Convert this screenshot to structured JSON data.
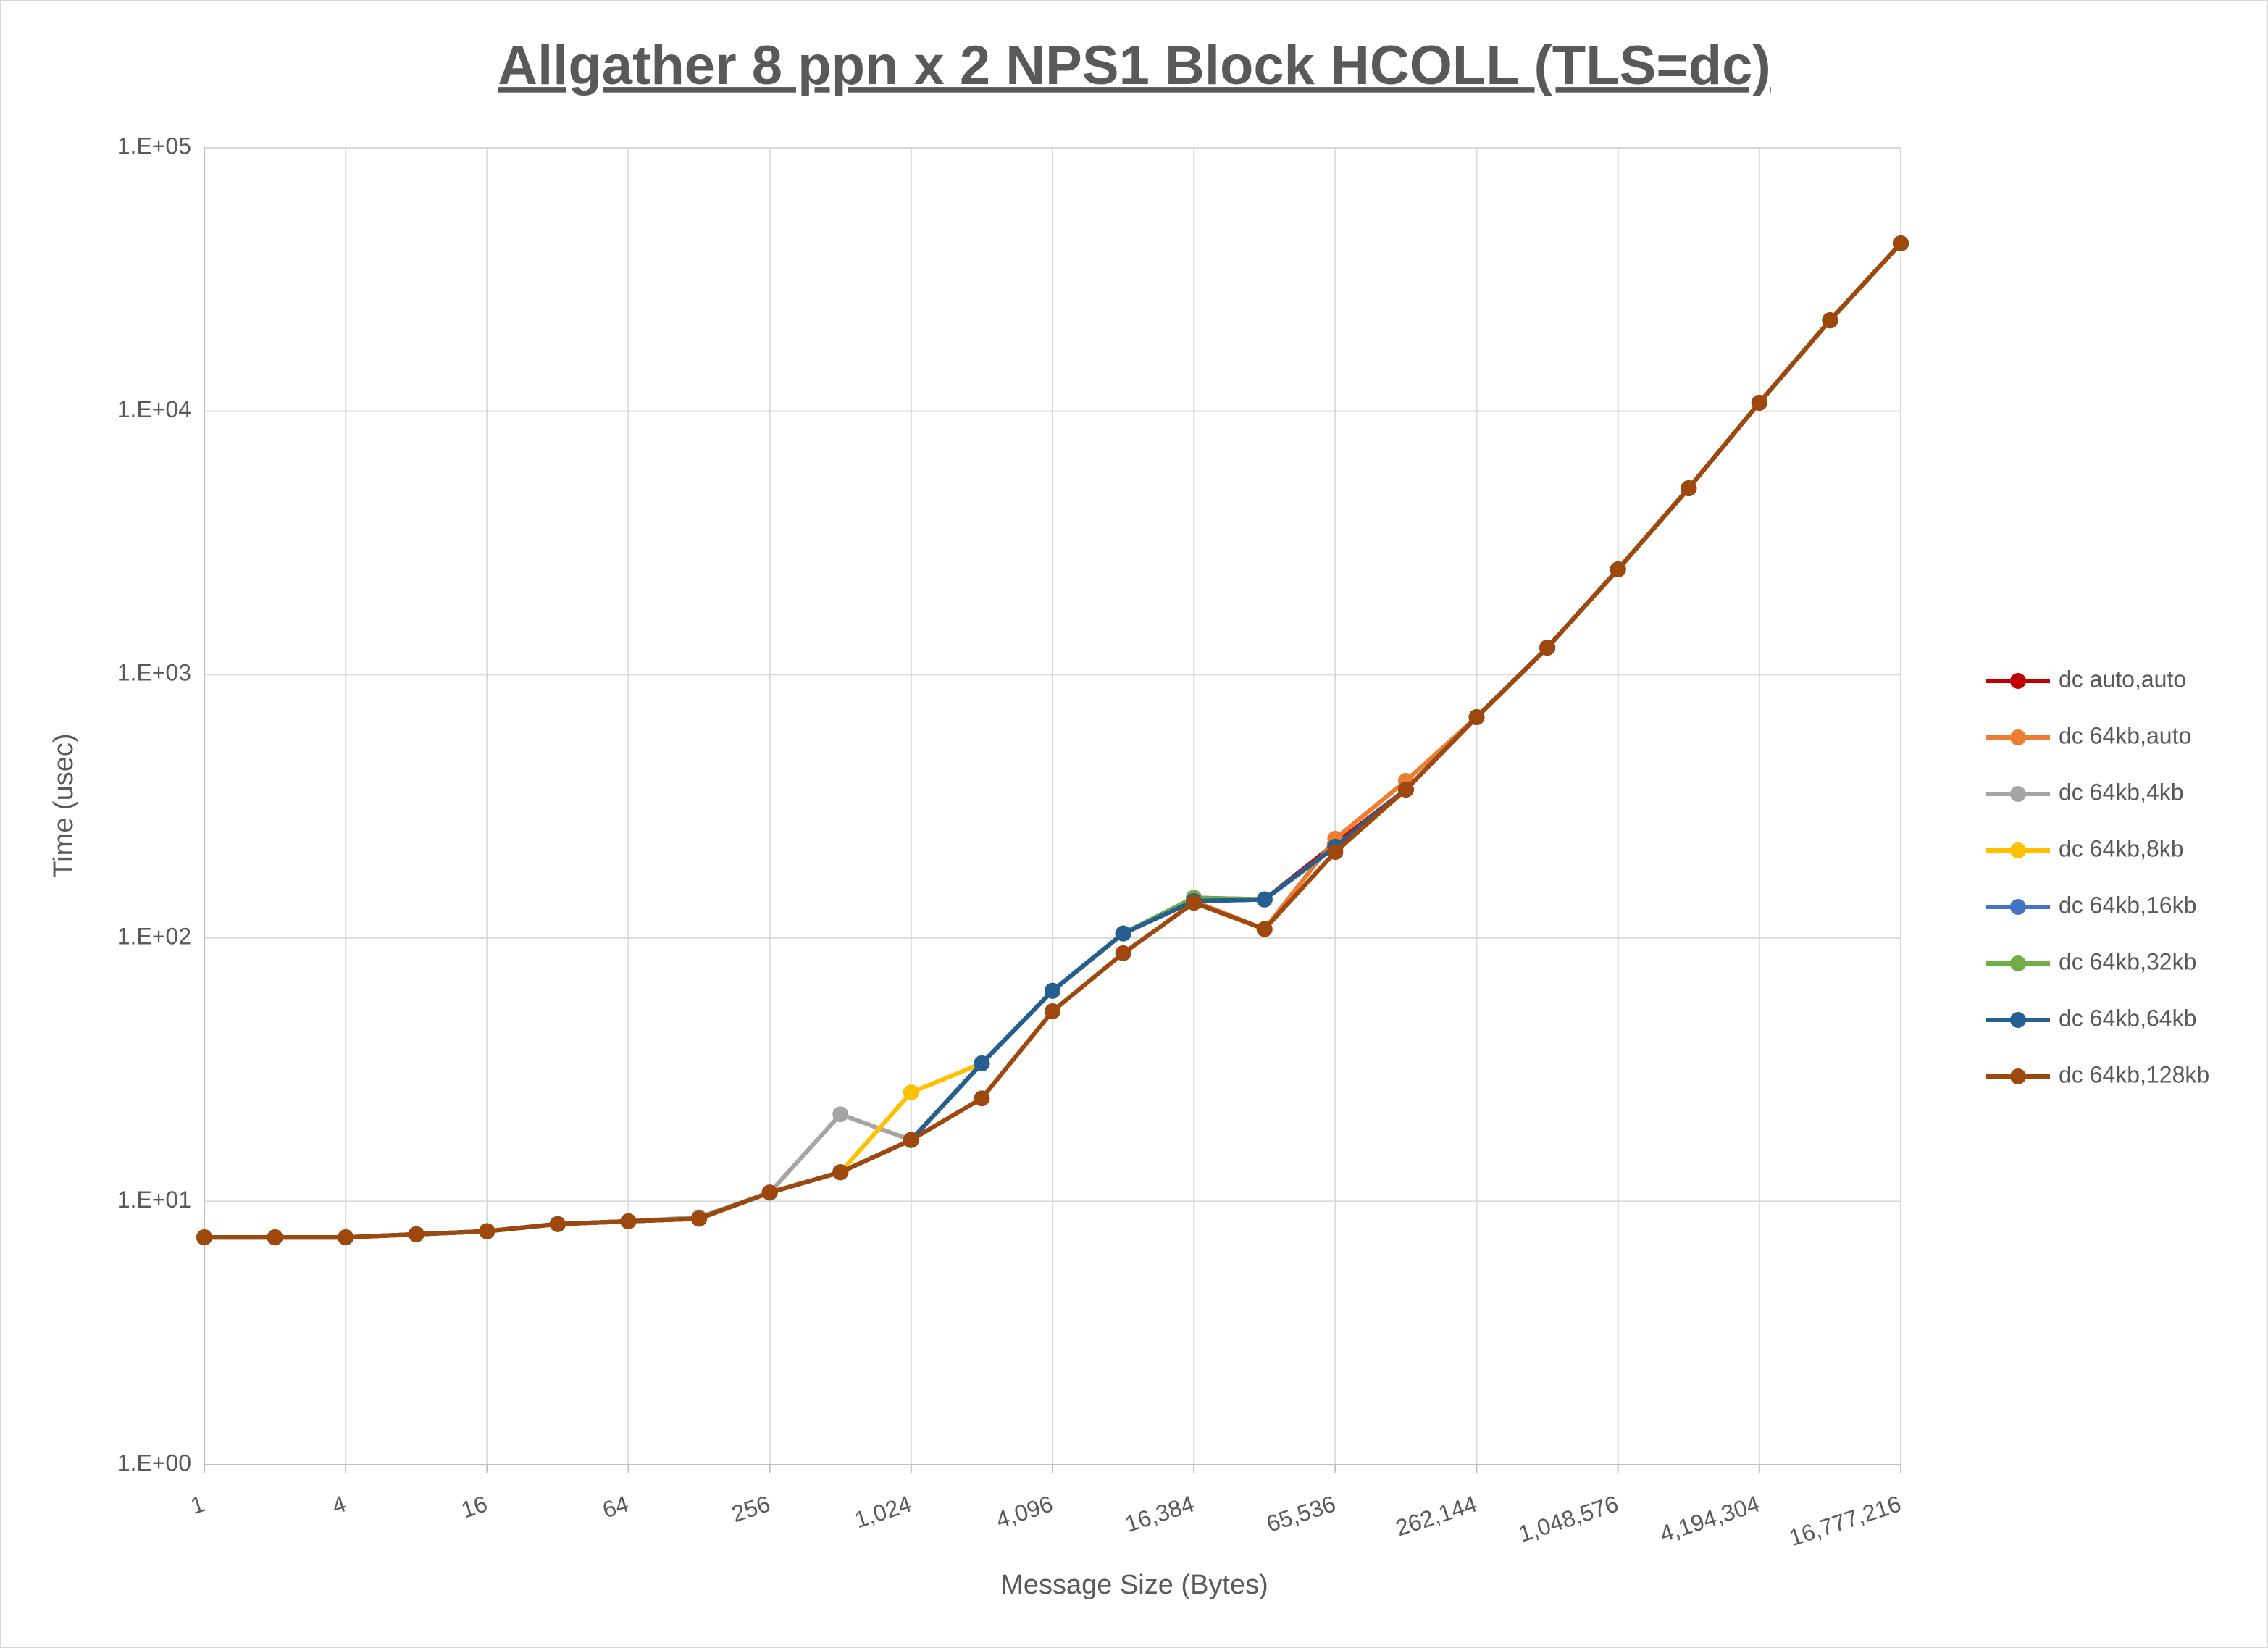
{
  "chart_data": {
    "type": "line",
    "title": "Allgather 8 ppn x 2 NPS1 Block HCOLL (TLS=dc)",
    "x_label": "Message Size (Bytes)",
    "y_label": "Time (usec)",
    "x_log": true,
    "y_log": true,
    "grid": true,
    "legend_position": "right",
    "x": [
      1,
      2,
      4,
      8,
      16,
      32,
      64,
      128,
      256,
      512,
      1024,
      2048,
      4096,
      8192,
      16384,
      32768,
      65536,
      131072,
      262144,
      524288,
      1048576,
      2097152,
      4194304,
      8388608,
      16777216
    ],
    "xlim": [
      1,
      16777216
    ],
    "xticks": [
      {
        "value": 1,
        "label": "1"
      },
      {
        "value": 4,
        "label": "4"
      },
      {
        "value": 16,
        "label": "16"
      },
      {
        "value": 64,
        "label": "64"
      },
      {
        "value": 256,
        "label": "256"
      },
      {
        "value": 1024,
        "label": "1,024"
      },
      {
        "value": 4096,
        "label": "4,096"
      },
      {
        "value": 16384,
        "label": "16,384"
      },
      {
        "value": 65536,
        "label": "65,536"
      },
      {
        "value": 262144,
        "label": "262,144"
      },
      {
        "value": 1048576,
        "label": "1,048,576"
      },
      {
        "value": 4194304,
        "label": "4,194,304"
      },
      {
        "value": 16777216,
        "label": "16,777,216"
      }
    ],
    "ylim": [
      1,
      100000
    ],
    "yticks": [
      {
        "value": 1,
        "label": "1.E+00"
      },
      {
        "value": 10,
        "label": "1.E+01"
      },
      {
        "value": 100,
        "label": "1.E+02"
      },
      {
        "value": 1000,
        "label": "1.E+03"
      },
      {
        "value": 10000,
        "label": "1.E+04"
      },
      {
        "value": 100000,
        "label": "1.E+05"
      }
    ],
    "series": [
      {
        "name": "dc auto,auto",
        "color": "#c00000",
        "values": [
          7.3,
          7.3,
          7.3,
          7.5,
          7.7,
          8.2,
          8.4,
          8.6,
          10.8,
          12.9,
          17.1,
          33.4,
          63,
          104,
          138,
          140,
          228,
          366,
          689,
          1265,
          2508,
          5097,
          10770,
          22130,
          43350
        ]
      },
      {
        "name": "dc 64kb,auto",
        "color": "#ed7d31",
        "values": [
          7.3,
          7.3,
          7.3,
          7.5,
          7.7,
          8.2,
          8.4,
          8.6,
          10.8,
          12.9,
          17.1,
          33.4,
          63,
          104,
          138,
          108,
          238,
          395,
          689,
          1265,
          2508,
          5097,
          10770,
          22130,
          43350
        ]
      },
      {
        "name": "dc 64kb,4kb",
        "color": "#a5a5a5",
        "values": [
          7.3,
          7.3,
          7.3,
          7.5,
          7.7,
          8.2,
          8.4,
          8.7,
          10.8,
          21.4,
          17.1,
          33.4,
          63,
          104,
          142,
          140,
          222,
          366,
          689,
          1265,
          2508,
          5097,
          10770,
          22130,
          43350
        ]
      },
      {
        "name": "dc 64kb,8kb",
        "color": "#ffc000",
        "values": [
          7.3,
          7.3,
          7.3,
          7.5,
          7.7,
          8.2,
          8.4,
          8.6,
          10.8,
          12.9,
          25.9,
          33.4,
          63,
          104,
          142,
          140,
          222,
          366,
          689,
          1265,
          2508,
          5097,
          10770,
          22130,
          43350
        ]
      },
      {
        "name": "dc 64kb,16kb",
        "color": "#4472c4",
        "values": [
          7.3,
          7.3,
          7.3,
          7.5,
          7.7,
          8.2,
          8.4,
          8.6,
          10.8,
          12.9,
          17.1,
          33.4,
          63,
          104,
          142,
          140,
          222,
          366,
          689,
          1265,
          2508,
          5097,
          10770,
          22130,
          43350
        ]
      },
      {
        "name": "dc 64kb,32kb",
        "color": "#70ad47",
        "values": [
          7.3,
          7.3,
          7.3,
          7.5,
          7.7,
          8.2,
          8.4,
          8.6,
          10.8,
          12.9,
          17.1,
          33.4,
          63,
          104,
          142,
          140,
          222,
          366,
          689,
          1265,
          2508,
          5097,
          10770,
          22130,
          43350
        ]
      },
      {
        "name": "dc 64kb,64kb",
        "color": "#255e91",
        "values": [
          7.3,
          7.3,
          7.3,
          7.5,
          7.7,
          8.2,
          8.4,
          8.6,
          10.8,
          12.9,
          17.1,
          33.4,
          63,
          104,
          138,
          140,
          222,
          366,
          689,
          1265,
          2508,
          5097,
          10770,
          22130,
          43350
        ]
      },
      {
        "name": "dc 64kb,128kb",
        "color": "#9e480e",
        "values": [
          7.3,
          7.3,
          7.3,
          7.5,
          7.7,
          8.2,
          8.4,
          8.6,
          10.8,
          12.9,
          17.1,
          24.6,
          52.7,
          87.5,
          136,
          108,
          212,
          366,
          689,
          1265,
          2508,
          5097,
          10770,
          22130,
          43350
        ]
      }
    ]
  }
}
